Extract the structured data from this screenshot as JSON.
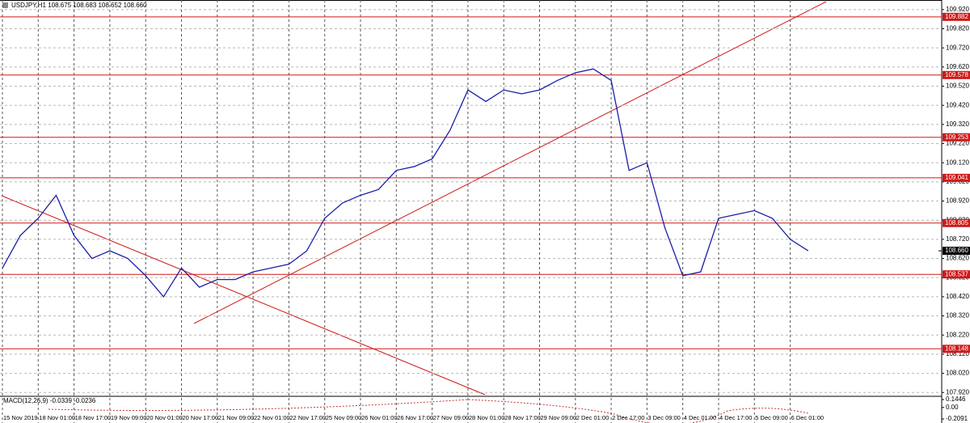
{
  "chart_data": {
    "type": "line",
    "title": "USDJPY,H1  108.675 108.683 108.652 108.660",
    "categories": [
      "15 Nov 2019",
      null,
      "18 Nov 01:00",
      null,
      "18 Nov 17:00",
      null,
      "19 Nov 09:00",
      null,
      "20 Nov 01:00",
      null,
      "20 Nov 17:00",
      null,
      "21 Nov 09:00",
      null,
      "22 Nov 01:00",
      null,
      "22 Nov 17:00",
      null,
      "25 Nov 09:00",
      null,
      "26 Nov 01:00",
      null,
      "26 Nov 17:00",
      null,
      "27 Nov 09:00",
      null,
      "28 Nov 01:00",
      null,
      "28 Nov 17:00",
      null,
      "29 Nov 09:00",
      null,
      "2 Dec 01:00",
      null,
      "2 Dec 17:00",
      null,
      "3 Dec 09:00",
      null,
      "4 Dec 01:00",
      null,
      "4 Dec 17:00",
      null,
      "5 Dec 09:00",
      null,
      "6 Dec 01:00",
      null
    ],
    "values": [
      108.57,
      108.74,
      108.83,
      108.95,
      108.74,
      108.62,
      108.66,
      108.62,
      108.53,
      108.42,
      108.57,
      108.47,
      108.51,
      108.51,
      108.55,
      108.57,
      108.59,
      108.66,
      108.83,
      108.91,
      108.95,
      108.98,
      109.08,
      109.1,
      109.14,
      109.29,
      109.5,
      109.44,
      109.5,
      109.48,
      109.5,
      109.55,
      109.59,
      109.61,
      109.55,
      109.08,
      109.12,
      108.78,
      108.53,
      108.55,
      108.83,
      108.85,
      108.87,
      108.83,
      108.72,
      108.66
    ],
    "color": "#1a1fa8",
    "ylim": [
      107.9,
      109.97
    ],
    "yticks": [
      {
        "value": 109.92,
        "label": "109.920"
      },
      {
        "value": 109.82,
        "label": "109.820"
      },
      {
        "value": 109.72,
        "label": "109.720"
      },
      {
        "value": 109.62,
        "label": "109.620"
      },
      {
        "value": 109.52,
        "label": "109.520"
      },
      {
        "value": 109.42,
        "label": "109.420"
      },
      {
        "value": 109.32,
        "label": "109.320"
      },
      {
        "value": 109.22,
        "label": "109.220"
      },
      {
        "value": 109.12,
        "label": "109.120"
      },
      {
        "value": 109.02,
        "label": "109.020"
      },
      {
        "value": 108.92,
        "label": "108.920"
      },
      {
        "value": 108.82,
        "label": "108.820"
      },
      {
        "value": 108.72,
        "label": "108.720"
      },
      {
        "value": 108.62,
        "label": "108.620"
      },
      {
        "value": 108.52,
        "label": "108.520"
      },
      {
        "value": 108.42,
        "label": "108.420"
      },
      {
        "value": 108.32,
        "label": "108.320"
      },
      {
        "value": 108.22,
        "label": "108.220"
      },
      {
        "value": 108.12,
        "label": "108.120"
      },
      {
        "value": 108.02,
        "label": "108.020"
      },
      {
        "value": 107.92,
        "label": "107.920"
      }
    ],
    "grid": true,
    "levels": [
      109.882,
      109.578,
      109.253,
      109.041,
      108.805,
      108.537,
      108.148
    ],
    "level_color": "#d01818",
    "current_price": {
      "value": 108.66,
      "label": "108.660"
    },
    "macd": {
      "label": "MACD(12,26,9) -0.0339 -0.0236",
      "ticks": [
        0.1446,
        {
          "value": 0,
          "label": "0.00"
        },
        -0.2091
      ]
    }
  }
}
